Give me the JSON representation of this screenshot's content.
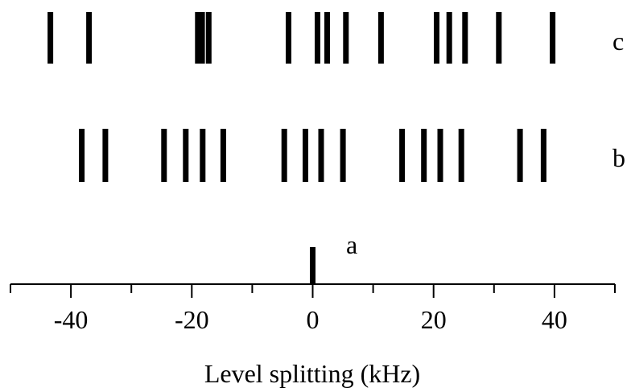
{
  "chart_data": {
    "type": "stick spectrum",
    "xlabel": "Level splitting (kHz)",
    "xlim": [
      -50,
      50
    ],
    "major_ticks": [
      -40,
      -20,
      0,
      20,
      40
    ],
    "minor_ticks": [
      -50,
      -30,
      -10,
      10,
      30,
      50
    ],
    "grid": false,
    "series": [
      {
        "name": "a",
        "x": [
          0
        ]
      },
      {
        "name": "b",
        "x": [
          -38.2,
          -34.3,
          -24.6,
          -21.0,
          -18.2,
          -14.8,
          -4.7,
          -1.2,
          1.4,
          5.0,
          14.8,
          18.4,
          21.1,
          24.6,
          34.3,
          38.2
        ]
      },
      {
        "name": "c",
        "x": [
          -43.4,
          -37.0,
          -19.0,
          -18.3,
          -17.2,
          -4.0,
          0.8,
          2.4,
          5.5,
          11.3,
          20.5,
          22.6,
          25.2,
          30.8,
          39.7
        ]
      }
    ]
  }
}
